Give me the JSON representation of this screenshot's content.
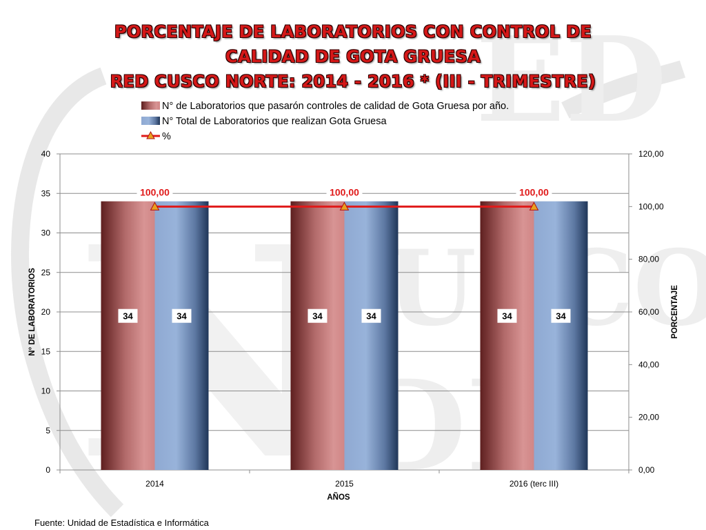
{
  "title": {
    "line1": "PORCENTAJE DE LABORATORIOS CON CONTROL DE",
    "line2": "CALIDAD DE GOTA GRUESA",
    "line3": "RED CUSCO NORTE: 2014 - 2016 * (III - TRIMESTRE)"
  },
  "source": "Fuente: Unidad de Estadística e Informática",
  "colors": {
    "title": "#d41818",
    "series1": "#d48888",
    "series1_dark": "#5e1f1f",
    "series2": "#93aed6",
    "series2_dark": "#1f3658",
    "line": "#e01a1a",
    "marker": "#e8a020"
  },
  "chart_data": {
    "type": "bar",
    "combo_line": true,
    "categories": [
      "2014",
      "2015",
      "2016 (terc III)"
    ],
    "series": [
      {
        "name": "N° de Laboratorios que pasarón controles de calidad de Gota Gruesa por año.",
        "type": "bar",
        "axis": "left",
        "values": [
          34,
          34,
          34
        ],
        "labels": [
          "34",
          "34",
          "34"
        ]
      },
      {
        "name": "N° Total de Laboratorios que realizan Gota Gruesa",
        "type": "bar",
        "axis": "left",
        "values": [
          34,
          34,
          34
        ],
        "labels": [
          "34",
          "34",
          "34"
        ]
      },
      {
        "name": "%",
        "type": "line",
        "axis": "right",
        "values": [
          100,
          100,
          100
        ],
        "labels": [
          "100,00",
          "100,00",
          "100,00"
        ]
      }
    ],
    "xlabel": "AÑOS",
    "ylabel": "N° DE LABORATORIOS",
    "y2label": "PORCENTAJE",
    "ylim": [
      0,
      40
    ],
    "y2lim": [
      0,
      120
    ],
    "yticks": [
      "0",
      "5",
      "10",
      "15",
      "20",
      "25",
      "30",
      "35",
      "40"
    ],
    "y2ticks": [
      "0,00",
      "20,00",
      "40,00",
      "60,00",
      "80,00",
      "100,00",
      "120,00"
    ],
    "grid": true,
    "legend_position": "top"
  }
}
